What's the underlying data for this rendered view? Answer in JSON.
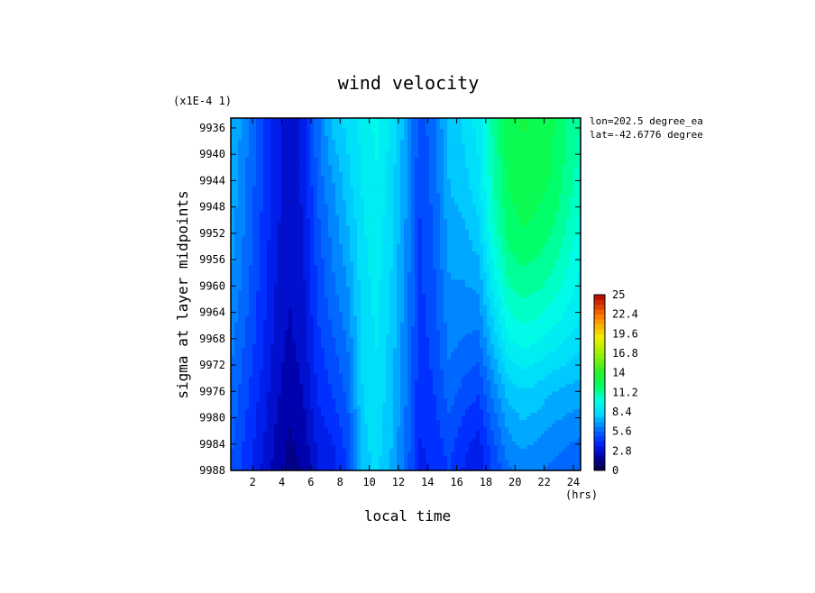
{
  "chart_data": {
    "type": "heatmap",
    "title": "wind velocity",
    "xlabel": "local time",
    "ylabel": "sigma at layer midpoints",
    "x_units": "(hrs)",
    "y_scale_note": "(x1E-4 1)",
    "annotations": [
      "lon=202.5 degree_ea",
      "lat=-42.6776 degree"
    ],
    "xlim": [
      0.5,
      24.5
    ],
    "ylim": [
      9988,
      9934.5
    ],
    "x_ticks": [
      2,
      4,
      6,
      8,
      10,
      12,
      14,
      16,
      18,
      20,
      22,
      24
    ],
    "y_ticks": [
      9936,
      9940,
      9944,
      9948,
      9952,
      9956,
      9960,
      9964,
      9968,
      9972,
      9976,
      9980,
      9984,
      9988
    ],
    "x": [
      0.5,
      1.5,
      2.5,
      3.5,
      4.5,
      5.5,
      6.5,
      7.5,
      8.5,
      9.5,
      10.5,
      11.5,
      12.5,
      13.5,
      14.5,
      15.5,
      16.5,
      17.5,
      18.5,
      19.5,
      20.5,
      21.5,
      22.5,
      23.5,
      24.5
    ],
    "y": [
      9936,
      9944,
      9952,
      9960,
      9968,
      9976,
      9984,
      9988
    ],
    "z": [
      [
        7.5,
        6.2,
        5.0,
        3.6,
        2.8,
        3.4,
        5.8,
        7.5,
        8.2,
        9.0,
        9.6,
        8.6,
        7.0,
        4.8,
        5.8,
        7.6,
        8.2,
        9.0,
        11.0,
        12.5,
        13.0,
        12.8,
        12.4,
        11.6,
        10.8
      ],
      [
        7.2,
        6.0,
        4.8,
        3.5,
        2.7,
        3.3,
        5.6,
        6.6,
        7.8,
        8.8,
        9.4,
        8.4,
        6.8,
        4.6,
        5.6,
        7.4,
        7.8,
        8.6,
        10.8,
        12.3,
        12.8,
        12.6,
        12.2,
        11.4,
        10.4
      ],
      [
        7.0,
        5.8,
        4.6,
        3.4,
        2.6,
        3.2,
        5.0,
        6.2,
        7.2,
        8.6,
        9.2,
        8.2,
        6.6,
        4.5,
        5.4,
        7.0,
        7.2,
        7.8,
        10.2,
        11.8,
        12.2,
        12.0,
        11.6,
        10.8,
        9.8
      ],
      [
        6.6,
        5.6,
        4.4,
        3.2,
        2.5,
        3.0,
        4.8,
        5.8,
        6.6,
        8.4,
        9.0,
        8.0,
        6.4,
        4.4,
        5.2,
        6.6,
        6.6,
        6.8,
        9.0,
        10.8,
        11.2,
        11.0,
        10.6,
        10.0,
        9.2
      ],
      [
        6.2,
        5.2,
        4.2,
        3.0,
        2.3,
        2.8,
        4.4,
        5.2,
        6.0,
        8.2,
        8.8,
        7.8,
        6.2,
        4.2,
        4.9,
        6.2,
        5.9,
        5.8,
        7.6,
        9.4,
        9.8,
        9.6,
        9.2,
        8.8,
        8.4
      ],
      [
        5.8,
        4.8,
        3.8,
        2.7,
        2.0,
        2.5,
        4.0,
        4.6,
        5.4,
        8.0,
        8.6,
        7.6,
        6.0,
        4.0,
        4.6,
        5.6,
        5.0,
        4.6,
        6.2,
        7.6,
        8.0,
        7.8,
        7.4,
        7.2,
        7.0
      ],
      [
        5.4,
        4.4,
        3.4,
        2.4,
        1.6,
        2.0,
        3.4,
        3.8,
        4.8,
        7.8,
        8.4,
        7.4,
        5.8,
        3.8,
        4.2,
        4.8,
        4.0,
        3.6,
        5.0,
        6.4,
        6.8,
        6.6,
        6.2,
        6.0,
        5.8
      ],
      [
        5.2,
        4.2,
        3.2,
        2.2,
        1.4,
        1.8,
        3.2,
        3.6,
        4.6,
        7.6,
        8.2,
        7.2,
        5.6,
        3.6,
        4.0,
        4.6,
        3.8,
        3.4,
        4.6,
        5.8,
        6.2,
        6.0,
        5.8,
        5.6,
        5.4
      ]
    ],
    "colorbar": {
      "min": 0,
      "max": 25,
      "tick_labels": [
        "25",
        "22.4",
        "19.6",
        "16.8",
        "14",
        "11.2",
        "8.4",
        "5.6",
        "2.8",
        "0"
      ]
    }
  }
}
